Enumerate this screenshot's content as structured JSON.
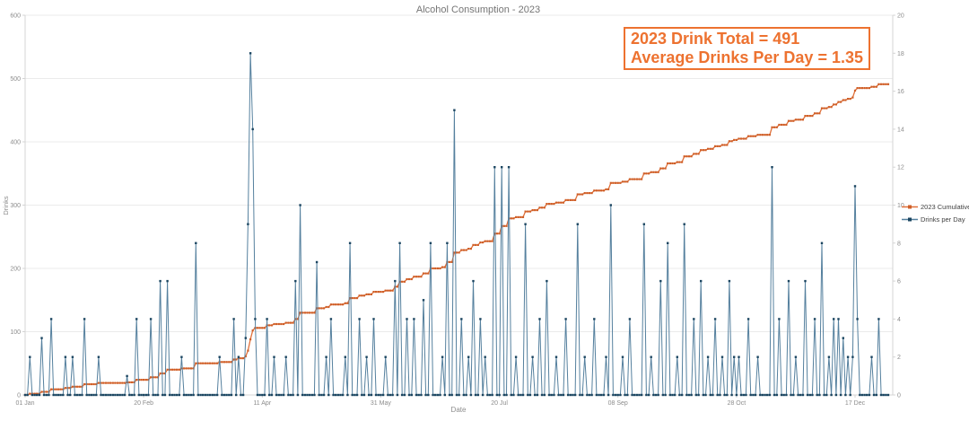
{
  "title": "Alcohol Consumption - 2023",
  "annotation": {
    "line1": "2023 Drink Total = 491",
    "line2": "Average Drinks Per Day = 1.35"
  },
  "colors": {
    "cumulative_line": "#e0703a",
    "cumulative_marker": "#cf5f28",
    "daily_line": "#55809e",
    "daily_marker": "#1b4560",
    "annotation": "#ed7230",
    "grid": "#ebebeb",
    "axis": "#d4d4d4",
    "tick_text": "#8c8c8c",
    "label_text": "#757575",
    "legend_text": "#404040"
  },
  "chart_data": {
    "type": "line",
    "title": "Alcohol Consumption - 2023",
    "xlabel": "Date",
    "ylabel": "Drinks",
    "days_in_year": 365,
    "total_drinks": 491,
    "average_drinks_per_day": 1.35,
    "x_tick_labels": [
      "01 Jan",
      "20 Feb",
      "11 Apr",
      "31 May",
      "20 Jul",
      "08 Sep",
      "28 Oct",
      "17 Dec"
    ],
    "x_tick_days": [
      0,
      50,
      100,
      150,
      200,
      250,
      300,
      350
    ],
    "ylim_left": [
      0,
      600
    ],
    "yticks_left": [
      0,
      100,
      200,
      300,
      400,
      500,
      600
    ],
    "ylim_right": [
      0,
      20
    ],
    "yticks_right": [
      0,
      2,
      4,
      6,
      8,
      10,
      12,
      14,
      16,
      18,
      20
    ],
    "grid": "horizontal",
    "legend_position": "right-outside",
    "legend": [
      "2023 Cumulative Drinks",
      "Drinks per Day"
    ],
    "cumulative_anchors": {
      "01 Jan": 0,
      "20 Feb": 24,
      "11 Apr": 106,
      "31 May": 163,
      "20 Jul": 255,
      "08 Sep": 335,
      "28 Oct": 403,
      "17 Dec": 470,
      "31 Dec": 491
    },
    "max_daily_value": 18,
    "series": [
      {
        "name": "2023 Cumulative Drinks",
        "axis": "left",
        "derived_from": "cumulative sum of Drinks per Day"
      },
      {
        "name": "Drinks per Day",
        "axis": "right",
        "values": [
          0,
          0,
          2,
          0,
          0,
          0,
          0,
          3,
          0,
          0,
          0,
          4,
          0,
          0,
          0,
          0,
          0,
          2,
          0,
          0,
          2,
          0,
          0,
          0,
          0,
          4,
          0,
          0,
          0,
          0,
          0,
          2,
          0,
          0,
          0,
          0,
          0,
          0,
          0,
          0,
          0,
          0,
          0,
          1,
          0,
          0,
          0,
          4,
          0,
          0,
          0,
          0,
          0,
          4,
          0,
          0,
          0,
          6,
          0,
          0,
          6,
          0,
          0,
          0,
          0,
          0,
          2,
          0,
          0,
          0,
          0,
          0,
          8,
          0,
          0,
          0,
          0,
          0,
          0,
          0,
          0,
          0,
          2,
          0,
          0,
          0,
          0,
          0,
          4,
          0,
          2,
          0,
          0,
          3,
          9,
          18,
          14,
          4,
          0,
          0,
          0,
          0,
          4,
          0,
          0,
          2,
          0,
          0,
          0,
          0,
          2,
          0,
          0,
          0,
          6,
          0,
          10,
          0,
          0,
          0,
          0,
          0,
          0,
          7,
          0,
          0,
          0,
          2,
          0,
          4,
          0,
          0,
          0,
          0,
          0,
          2,
          0,
          8,
          0,
          0,
          0,
          4,
          0,
          0,
          2,
          0,
          0,
          4,
          0,
          0,
          0,
          0,
          2,
          0,
          0,
          0,
          6,
          0,
          8,
          0,
          0,
          4,
          0,
          0,
          4,
          0,
          0,
          0,
          5,
          0,
          0,
          8,
          0,
          0,
          0,
          0,
          2,
          0,
          8,
          0,
          0,
          15,
          0,
          0,
          4,
          0,
          0,
          2,
          0,
          6,
          0,
          0,
          4,
          0,
          2,
          0,
          0,
          0,
          12,
          0,
          0,
          12,
          0,
          0,
          12,
          0,
          0,
          2,
          0,
          0,
          0,
          9,
          0,
          0,
          2,
          0,
          0,
          4,
          0,
          0,
          6,
          0,
          0,
          0,
          2,
          0,
          0,
          0,
          4,
          0,
          0,
          0,
          0,
          9,
          0,
          0,
          2,
          0,
          0,
          0,
          4,
          0,
          0,
          0,
          0,
          2,
          0,
          10,
          0,
          0,
          0,
          0,
          2,
          0,
          0,
          4,
          0,
          0,
          0,
          0,
          0,
          9,
          0,
          0,
          2,
          0,
          0,
          0,
          6,
          0,
          0,
          8,
          0,
          0,
          0,
          2,
          0,
          0,
          9,
          0,
          0,
          0,
          4,
          0,
          0,
          6,
          0,
          0,
          2,
          0,
          0,
          4,
          0,
          0,
          2,
          0,
          0,
          6,
          0,
          2,
          0,
          2,
          0,
          0,
          0,
          4,
          0,
          0,
          0,
          2,
          0,
          0,
          0,
          0,
          0,
          12,
          0,
          0,
          4,
          0,
          0,
          0,
          6,
          0,
          0,
          2,
          0,
          0,
          0,
          6,
          0,
          0,
          0,
          4,
          0,
          0,
          8,
          0,
          0,
          2,
          0,
          4,
          0,
          4,
          0,
          3,
          0,
          2,
          0,
          2,
          11,
          4,
          0,
          0,
          0,
          0,
          0,
          2,
          0,
          0,
          4,
          0,
          0,
          0,
          0
        ]
      }
    ]
  }
}
